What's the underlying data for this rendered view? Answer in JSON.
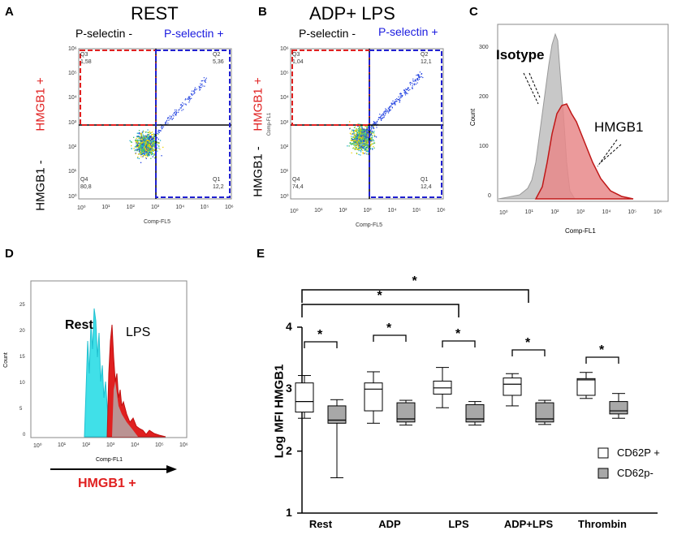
{
  "panels": {
    "A": {
      "letter": "A",
      "title": "REST",
      "ps_neg": "P-selectin -",
      "ps_pos": "P-selectin +",
      "y_pos": "HMGB1 +",
      "y_neg": "HMGB1 -",
      "q3": "Q3",
      "q3v": "1,58",
      "q2": "Q2",
      "q2v": "5,36",
      "q4": "Q4",
      "q4v": "80,8",
      "q1": "Q1",
      "q1v": "12,2",
      "xaxis": "Comp-FL5"
    },
    "B": {
      "letter": "B",
      "title": "ADP+ LPS",
      "ps_neg": "P-selectin -",
      "ps_pos": "P-selectin +",
      "y_pos": "HMGB1 +",
      "y_neg": "HMGB1 -",
      "q3": "Q3",
      "q3v": "1,04",
      "q2": "Q2",
      "q2v": "12,1",
      "q4": "Q4",
      "q4v": "74,4",
      "q1": "Q1",
      "q1v": "12,4",
      "xaxis": "Comp-FL5",
      "yaxis": "Comp-FL1"
    },
    "C": {
      "letter": "C",
      "isotype": "Isotype",
      "hmgb1": "HMGB1",
      "ylabel": "Count",
      "xaxis": "Comp-FL1"
    },
    "D": {
      "letter": "D",
      "rest": "Rest",
      "lps": "LPS",
      "ylabel": "Count",
      "xaxis": "Comp-FL1",
      "arrow_label": "HMGB1 +"
    },
    "E": {
      "letter": "E"
    }
  },
  "flow_ticks": {
    "x": [
      "10⁰",
      "10¹",
      "10²",
      "10³",
      "10⁴",
      "10⁵",
      "10⁶"
    ],
    "y": [
      "10⁰",
      "10¹",
      "10²",
      "10³",
      "10⁴",
      "10⁵",
      "10⁶"
    ]
  },
  "hist_ticks": {
    "C_y": [
      "0",
      "100",
      "200",
      "300"
    ],
    "D_y": [
      "0",
      "5",
      "10",
      "15",
      "20",
      "25"
    ]
  },
  "significance": "*",
  "colors": {
    "red": "#e02020",
    "blue": "#2020d0",
    "hist_red": "#e8888a",
    "hist_gray": "#c8c8c8",
    "cyan": "#40e0e8"
  },
  "chart_data": {
    "type": "box",
    "title": "",
    "ylabel": "Log MFI HMGB1",
    "xlabel": "",
    "ylim": [
      1,
      4
    ],
    "yticks": [
      "1",
      "2",
      "3",
      "4"
    ],
    "categories": [
      "Rest",
      "ADP",
      "LPS",
      "ADP+LPS",
      "Thrombin"
    ],
    "legend": [
      "CD62P +",
      "CD62p-"
    ],
    "series": [
      {
        "name": "CD62P +",
        "boxes": [
          {
            "min": 2.53,
            "q1": 2.63,
            "median": 2.8,
            "q3": 3.1,
            "max": 3.22
          },
          {
            "min": 2.45,
            "q1": 2.65,
            "median": 3.0,
            "q3": 3.1,
            "max": 3.28
          },
          {
            "min": 2.7,
            "q1": 2.92,
            "median": 3.02,
            "q3": 3.13,
            "max": 3.35
          },
          {
            "min": 2.73,
            "q1": 2.9,
            "median": 3.08,
            "q3": 3.18,
            "max": 3.25
          },
          {
            "min": 2.85,
            "q1": 2.9,
            "median": 3.15,
            "q3": 3.17,
            "max": 3.27
          }
        ]
      },
      {
        "name": "CD62p-",
        "boxes": [
          {
            "min": 1.57,
            "q1": 2.45,
            "median": 2.5,
            "q3": 2.73,
            "max": 2.83
          },
          {
            "min": 2.42,
            "q1": 2.47,
            "median": 2.52,
            "q3": 2.78,
            "max": 2.82
          },
          {
            "min": 2.42,
            "q1": 2.47,
            "median": 2.52,
            "q3": 2.75,
            "max": 2.8
          },
          {
            "min": 2.43,
            "q1": 2.47,
            "median": 2.52,
            "q3": 2.78,
            "max": 2.82
          },
          {
            "min": 2.53,
            "q1": 2.6,
            "median": 2.65,
            "q3": 2.8,
            "max": 2.93
          }
        ]
      }
    ],
    "significance_pairs": [
      "Rest",
      "ADP",
      "LPS",
      "ADP+LPS",
      "Thrombin"
    ],
    "significance_across": [
      [
        "Rest",
        "LPS"
      ],
      [
        "Rest",
        "ADP+LPS"
      ]
    ]
  }
}
